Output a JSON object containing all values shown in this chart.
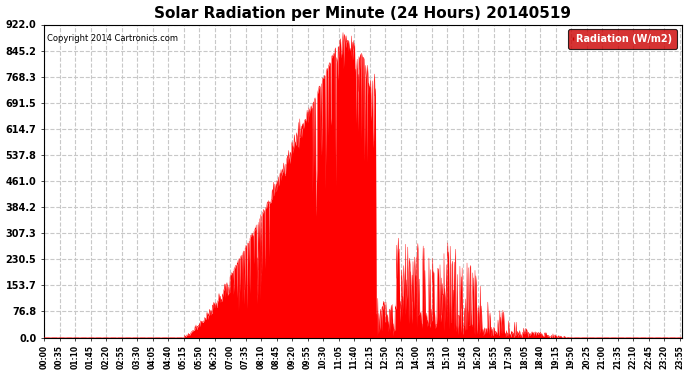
{
  "title": "Solar Radiation per Minute (24 Hours) 20140519",
  "copyright": "Copyright 2014 Cartronics.com",
  "background_color": "#ffffff",
  "fill_color": "#ff0000",
  "line_color": "#ff0000",
  "dashed_line_color": "#ff0000",
  "grid_color": "#c8c8c8",
  "yticks": [
    0.0,
    76.8,
    153.7,
    230.5,
    307.3,
    384.2,
    461.0,
    537.8,
    614.7,
    691.5,
    768.3,
    845.2,
    922.0
  ],
  "ymax": 922.0,
  "ymin": 0.0,
  "xtick_interval_minutes": 35,
  "total_minutes": 1440,
  "legend_label": "Radiation (W/m2)",
  "legend_bg": "#cc0000",
  "legend_text_color": "#ffffff",
  "sunrise_min": 315,
  "sunset_min": 1185,
  "peak_min": 680,
  "peak_val": 922.0
}
